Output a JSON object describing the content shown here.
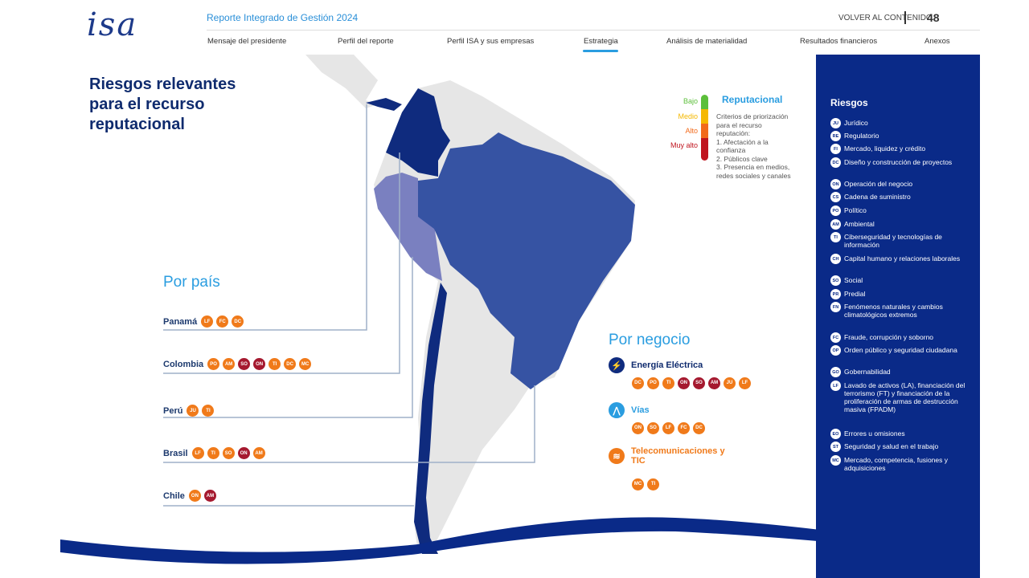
{
  "header": {
    "logo": "isa",
    "report_title": "Reporte Integrado de Gestión 2024",
    "back_link": "VOLVER AL CONTENIDO",
    "page_number": "48",
    "nav": [
      "Mensaje del presidente",
      "Perfil del reporte",
      "Perfil ISA y sus empresas",
      "Estrategia",
      "Análisis de materialidad",
      "Resultados financieros",
      "Anexos"
    ],
    "active_nav": "Estrategia"
  },
  "title": [
    "Riesgos relevantes",
    "para el recurso",
    "reputacional"
  ],
  "legend": {
    "title": "Reputacional",
    "levels": [
      {
        "label": "Bajo",
        "color": "#5cbf3a"
      },
      {
        "label": "Medio",
        "color": "#f5b800"
      },
      {
        "label": "Alto",
        "color": "#f26a1b"
      },
      {
        "label": "Muy alto",
        "color": "#c0141e"
      }
    ],
    "criteria": [
      "Criterios de priorización",
      "para el recurso",
      "reputación:",
      "1. Afectación a la",
      "confianza",
      "2. Públicos clave",
      "3. Presencia en medios,",
      "redes sociales y canales"
    ]
  },
  "por_pais": {
    "title": "Por país",
    "countries": [
      {
        "name": "Panamá",
        "risks": [
          [
            "LF",
            "a"
          ],
          [
            "FC",
            "a"
          ],
          [
            "DC",
            "a"
          ]
        ]
      },
      {
        "name": "Colombia",
        "risks": [
          [
            "PO",
            "a"
          ],
          [
            "AM",
            "a"
          ],
          [
            "SO",
            "m"
          ],
          [
            "ON",
            "m"
          ],
          [
            "TI",
            "a"
          ],
          [
            "DC",
            "a"
          ],
          [
            "MC",
            "a"
          ]
        ]
      },
      {
        "name": "Perú",
        "risks": [
          [
            "JU",
            "a"
          ],
          [
            "TI",
            "a"
          ]
        ]
      },
      {
        "name": "Brasil",
        "risks": [
          [
            "LF",
            "a"
          ],
          [
            "TI",
            "a"
          ],
          [
            "SO",
            "a"
          ],
          [
            "ON",
            "m"
          ],
          [
            "AM",
            "a"
          ]
        ]
      },
      {
        "name": "Chile",
        "risks": [
          [
            "ON",
            "a"
          ],
          [
            "AM",
            "m"
          ]
        ]
      }
    ]
  },
  "por_negocio": {
    "title": "Por negocio",
    "businesses": [
      {
        "name": "Energía Eléctrica",
        "icon": "lightning-icon",
        "risks": [
          [
            "DC",
            "a"
          ],
          [
            "PO",
            "a"
          ],
          [
            "TI",
            "a"
          ],
          [
            "ON",
            "m"
          ],
          [
            "SO",
            "m"
          ],
          [
            "AM",
            "m"
          ],
          [
            "JU",
            "a"
          ],
          [
            "LF",
            "a"
          ]
        ]
      },
      {
        "name": "Vías",
        "icon": "road-icon",
        "risks": [
          [
            "ON",
            "a"
          ],
          [
            "SO",
            "a"
          ],
          [
            "LF",
            "a"
          ],
          [
            "FC",
            "a"
          ],
          [
            "DC",
            "a"
          ]
        ]
      },
      {
        "name": "Telecomunicaciones y TIC",
        "icon": "wifi-icon",
        "risks": [
          [
            "MC",
            "a"
          ],
          [
            "TI",
            "a"
          ]
        ]
      }
    ]
  },
  "sidebar": {
    "title": "Riesgos",
    "risks": [
      [
        "JU",
        "Jurídico"
      ],
      [
        "RE",
        "Regulatorio"
      ],
      [
        "FI",
        "Mercado, liquidez y crédito"
      ],
      [
        "DC",
        "Diseño y construcción de proyectos"
      ],
      [
        "ON",
        "Operación del negocio"
      ],
      [
        "CS",
        "Cadena de suministro"
      ],
      [
        "PO",
        "Político"
      ],
      [
        "AM",
        "Ambiental"
      ],
      [
        "TI",
        "Ciberseguridad y tecnologías de información"
      ],
      [
        "CH",
        "Capital humano y relaciones laborales"
      ],
      [
        "SO",
        "Social"
      ],
      [
        "PR",
        "Predial"
      ],
      [
        "FN",
        "Fenómenos naturales y cambios climatológicos extremos"
      ],
      [
        "FC",
        "Fraude, corrupción y soborno"
      ],
      [
        "OP",
        "Orden público y seguridad ciudadana"
      ],
      [
        "GO",
        "Gobernabilidad"
      ],
      [
        "LF",
        "Lavado de activos (LA), financiación del terrorismo (FT) y financiación de la proliferación de armas de destrucción masiva (FPADM)"
      ],
      [
        "EO",
        "Errores u omisiones"
      ],
      [
        "ST",
        "Seguridad y salud en el trabajo"
      ],
      [
        "MC",
        "Mercado, competencia, fusiones y adquisiciones"
      ]
    ]
  }
}
